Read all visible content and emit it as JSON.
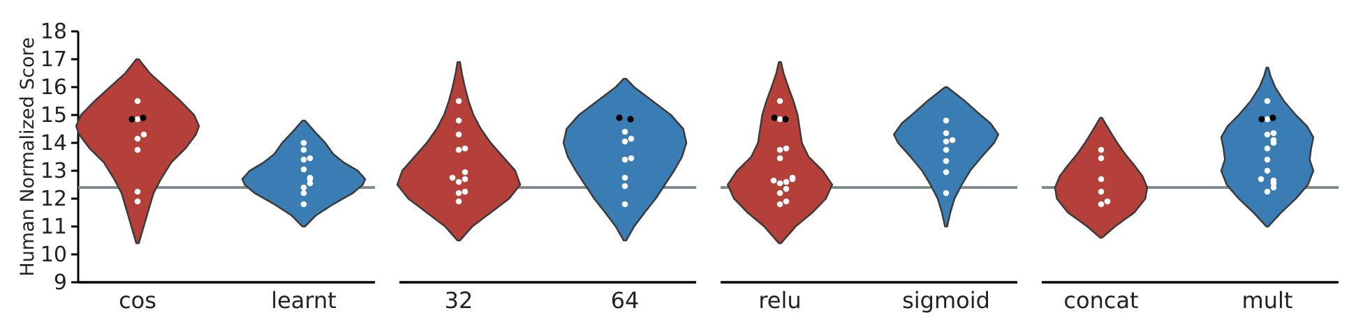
{
  "chart_data": {
    "type": "violin",
    "ylabel": "Human Normalized Score",
    "ylim": [
      9,
      18
    ],
    "yticks": [
      "9",
      "10",
      "11",
      "12",
      "13",
      "14",
      "15",
      "16",
      "17",
      "18"
    ],
    "baseline": 12.4,
    "colors": {
      "red": "#b5403a",
      "blue": "#3a7db4",
      "baseline": "#7f8c8d",
      "outline": "#3a3a3a"
    },
    "groups": [
      {
        "categories": [
          {
            "label": "cos",
            "color": "red",
            "min": 10.4,
            "max": 17.0,
            "maxw": 1.0,
            "profile": [
              [
                10.4,
                0.02
              ],
              [
                11.0,
                0.1
              ],
              [
                11.6,
                0.18
              ],
              [
                12.2,
                0.26
              ],
              [
                12.7,
                0.38
              ],
              [
                13.3,
                0.55
              ],
              [
                13.8,
                0.78
              ],
              [
                14.3,
                0.95
              ],
              [
                14.6,
                1.0
              ],
              [
                15.0,
                0.92
              ],
              [
                15.5,
                0.7
              ],
              [
                16.0,
                0.45
              ],
              [
                16.5,
                0.2
              ],
              [
                17.0,
                0.02
              ]
            ],
            "white": [
              11.9,
              12.25,
              13.75,
              14.15,
              14.3,
              14.85,
              15.5
            ],
            "black": [
              14.85,
              14.9
            ]
          },
          {
            "label": "learnt",
            "color": "blue",
            "min": 11.0,
            "max": 14.8,
            "maxw": 1.0,
            "profile": [
              [
                11.0,
                0.02
              ],
              [
                11.4,
                0.2
              ],
              [
                11.8,
                0.48
              ],
              [
                12.2,
                0.8
              ],
              [
                12.5,
                0.96
              ],
              [
                12.7,
                1.0
              ],
              [
                13.0,
                0.88
              ],
              [
                13.3,
                0.65
              ],
              [
                13.6,
                0.48
              ],
              [
                14.0,
                0.35
              ],
              [
                14.4,
                0.18
              ],
              [
                14.8,
                0.02
              ]
            ],
            "white": [
              11.8,
              12.2,
              12.4,
              12.55,
              12.7,
              12.75,
              13.05,
              13.4,
              13.45,
              13.75,
              14.0
            ],
            "black": []
          }
        ]
      },
      {
        "categories": [
          {
            "label": "32",
            "color": "red",
            "min": 10.5,
            "max": 16.9,
            "maxw": 1.0,
            "profile": [
              [
                10.5,
                0.02
              ],
              [
                11.0,
                0.22
              ],
              [
                11.5,
                0.52
              ],
              [
                12.0,
                0.82
              ],
              [
                12.5,
                1.0
              ],
              [
                13.0,
                0.92
              ],
              [
                13.5,
                0.72
              ],
              [
                14.0,
                0.52
              ],
              [
                14.5,
                0.36
              ],
              [
                15.0,
                0.24
              ],
              [
                15.5,
                0.16
              ],
              [
                16.0,
                0.1
              ],
              [
                16.5,
                0.05
              ],
              [
                16.9,
                0.02
              ]
            ],
            "white": [
              11.9,
              12.2,
              12.25,
              12.6,
              12.7,
              12.75,
              12.95,
              13.75,
              13.8,
              14.3,
              14.8,
              15.5
            ],
            "black": []
          },
          {
            "label": "64",
            "color": "blue",
            "min": 10.5,
            "max": 16.3,
            "maxw": 1.0,
            "profile": [
              [
                10.5,
                0.02
              ],
              [
                11.0,
                0.15
              ],
              [
                11.5,
                0.32
              ],
              [
                12.0,
                0.5
              ],
              [
                12.5,
                0.65
              ],
              [
                13.0,
                0.8
              ],
              [
                13.5,
                0.93
              ],
              [
                14.0,
                1.0
              ],
              [
                14.5,
                0.95
              ],
              [
                15.0,
                0.75
              ],
              [
                15.5,
                0.45
              ],
              [
                16.0,
                0.15
              ],
              [
                16.3,
                0.02
              ]
            ],
            "white": [
              11.8,
              12.45,
              12.75,
              13.4,
              13.45,
              14.05,
              14.15,
              14.4
            ],
            "black": [
              14.9,
              14.85
            ]
          }
        ]
      },
      {
        "categories": [
          {
            "label": "relu",
            "color": "red",
            "min": 10.4,
            "max": 16.9,
            "maxw": 0.85,
            "profile": [
              [
                10.4,
                0.02
              ],
              [
                11.0,
                0.3
              ],
              [
                11.5,
                0.62
              ],
              [
                12.0,
                0.88
              ],
              [
                12.5,
                1.0
              ],
              [
                13.0,
                0.82
              ],
              [
                13.5,
                0.55
              ],
              [
                14.0,
                0.42
              ],
              [
                14.5,
                0.38
              ],
              [
                15.0,
                0.34
              ],
              [
                15.5,
                0.26
              ],
              [
                16.0,
                0.16
              ],
              [
                16.5,
                0.07
              ],
              [
                16.9,
                0.02
              ]
            ],
            "white": [
              11.8,
              11.9,
              12.2,
              12.35,
              12.55,
              12.6,
              12.65,
              12.7,
              12.75,
              13.45,
              13.75,
              13.8,
              14.85,
              15.5
            ],
            "black": [
              14.9,
              14.85
            ]
          },
          {
            "label": "sigmoid",
            "color": "blue",
            "min": 11.0,
            "max": 16.0,
            "maxw": 0.85,
            "profile": [
              [
                11.0,
                0.02
              ],
              [
                11.5,
                0.08
              ],
              [
                12.0,
                0.16
              ],
              [
                12.5,
                0.3
              ],
              [
                13.0,
                0.46
              ],
              [
                13.5,
                0.68
              ],
              [
                14.0,
                0.92
              ],
              [
                14.3,
                1.0
              ],
              [
                14.7,
                0.85
              ],
              [
                15.0,
                0.66
              ],
              [
                15.5,
                0.36
              ],
              [
                16.0,
                0.02
              ]
            ],
            "white": [
              12.2,
              12.95,
              13.35,
              13.75,
              14.05,
              14.1,
              14.35,
              14.8
            ],
            "black": []
          }
        ]
      },
      {
        "categories": [
          {
            "label": "concat",
            "color": "red",
            "min": 10.6,
            "max": 14.9,
            "maxw": 0.75,
            "profile": [
              [
                10.6,
                0.02
              ],
              [
                11.0,
                0.3
              ],
              [
                11.5,
                0.72
              ],
              [
                12.0,
                0.96
              ],
              [
                12.4,
                1.0
              ],
              [
                12.8,
                0.9
              ],
              [
                13.2,
                0.72
              ],
              [
                13.6,
                0.52
              ],
              [
                14.0,
                0.35
              ],
              [
                14.4,
                0.2
              ],
              [
                14.9,
                0.02
              ]
            ],
            "white": [
              11.8,
              11.9,
              12.25,
              12.7,
              13.45,
              13.75
            ],
            "black": []
          },
          {
            "label": "mult",
            "color": "blue",
            "min": 11.0,
            "max": 16.7,
            "maxw": 0.75,
            "profile": [
              [
                11.0,
                0.02
              ],
              [
                11.5,
                0.3
              ],
              [
                12.0,
                0.62
              ],
              [
                12.5,
                0.88
              ],
              [
                13.0,
                1.0
              ],
              [
                13.4,
                0.92
              ],
              [
                13.8,
                0.95
              ],
              [
                14.2,
                1.0
              ],
              [
                14.6,
                0.86
              ],
              [
                15.0,
                0.62
              ],
              [
                15.5,
                0.36
              ],
              [
                16.0,
                0.17
              ],
              [
                16.4,
                0.07
              ],
              [
                16.7,
                0.02
              ]
            ],
            "white": [
              12.25,
              12.4,
              12.55,
              12.65,
              12.7,
              13.0,
              13.4,
              13.8,
              14.0,
              14.1,
              14.3,
              14.35,
              14.85,
              15.5
            ],
            "black": [
              14.85,
              14.9
            ]
          }
        ]
      }
    ]
  }
}
